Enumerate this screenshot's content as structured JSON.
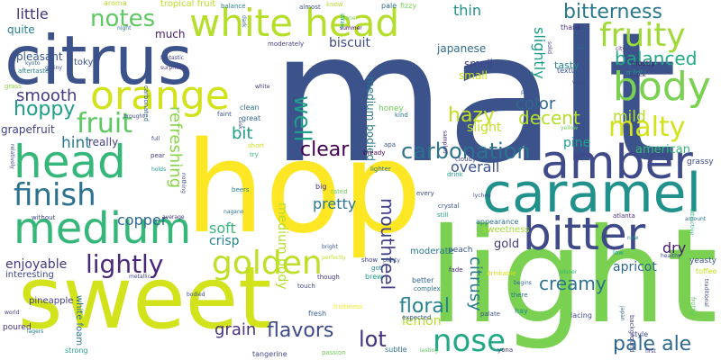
{
  "words": [
    {
      "text": "malt",
      "color": "#3b528b"
    },
    {
      "text": "hop",
      "color": "#fde725"
    },
    {
      "text": "sweet",
      "color": "#d2e21b"
    },
    {
      "text": "light",
      "color": "#7ad151"
    },
    {
      "text": "citrus",
      "color": "#3b528b"
    },
    {
      "text": "white head",
      "color": "#b5de2b"
    },
    {
      "text": "caramel",
      "color": "#21918c"
    },
    {
      "text": "head",
      "color": "#35b779"
    },
    {
      "text": "orange",
      "color": "#d2e21b"
    },
    {
      "text": "amber",
      "color": "#3e4a89"
    },
    {
      "text": "bitter",
      "color": "#3e4a89"
    },
    {
      "text": "medium",
      "color": "#35b779"
    },
    {
      "text": "finish",
      "color": "#2c728e"
    },
    {
      "text": "body",
      "color": "#7ad151"
    },
    {
      "text": "golden",
      "color": "#bddf26"
    },
    {
      "text": "fruity",
      "color": "#a0da39"
    },
    {
      "text": "lightly",
      "color": "#482878"
    },
    {
      "text": "nose",
      "color": "#22a884"
    },
    {
      "text": "bitterness",
      "color": "#2a788e"
    },
    {
      "text": "notes",
      "color": "#5ec962"
    },
    {
      "text": "fruit",
      "color": "#5ec962"
    },
    {
      "text": "malty",
      "color": "#d2e21b"
    },
    {
      "text": "carbonation",
      "color": "#2c728e"
    },
    {
      "text": "balanced",
      "color": "#22a884"
    },
    {
      "text": "pale ale",
      "color": "#31688e"
    },
    {
      "text": "clear",
      "color": "#440154"
    },
    {
      "text": "creamy",
      "color": "#2c728e"
    },
    {
      "text": "well",
      "color": "#1f9e89"
    },
    {
      "text": "hoppy",
      "color": "#1f9e89"
    },
    {
      "text": "color",
      "color": "#31688e"
    },
    {
      "text": "slightly",
      "color": "#1f9e89"
    },
    {
      "text": "hazy",
      "color": "#c2df23"
    },
    {
      "text": "floral",
      "color": "#26828e"
    },
    {
      "text": "lot",
      "color": "#46337e"
    },
    {
      "text": "flavors",
      "color": "#3e4a89"
    },
    {
      "text": "mouthfeel",
      "color": "#424086"
    },
    {
      "text": "refreshing",
      "color": "#86d549"
    },
    {
      "text": "smooth",
      "color": "#443a83"
    },
    {
      "text": "decent",
      "color": "#b5de2b"
    },
    {
      "text": "mild",
      "color": "#b5de2b"
    },
    {
      "text": "overall",
      "color": "#3b528b"
    },
    {
      "text": "bit",
      "color": "#1f9e89"
    },
    {
      "text": "hint",
      "color": "#2a788e"
    },
    {
      "text": "apricot",
      "color": "#306a8e"
    },
    {
      "text": "enjoyable",
      "color": "#443983"
    },
    {
      "text": "grain",
      "color": "#46327e"
    },
    {
      "text": "pretty",
      "color": "#2a788e"
    },
    {
      "text": "citrusy",
      "color": "#2a788e"
    },
    {
      "text": "lemon",
      "color": "#b5de2b"
    },
    {
      "text": "dry",
      "color": "#481b6d"
    },
    {
      "text": "soft",
      "color": "#35b779"
    },
    {
      "text": "crisp",
      "color": "#26828e"
    },
    {
      "text": "copper",
      "color": "#31688e"
    },
    {
      "text": "thin",
      "color": "#21918c"
    },
    {
      "text": "little",
      "color": "#46337e"
    },
    {
      "text": "much",
      "color": "#481b6d"
    },
    {
      "text": "quite",
      "color": "#277f8e"
    },
    {
      "text": "biscuit",
      "color": "#3e4a89"
    },
    {
      "text": "japanese",
      "color": "#2f6c8e"
    },
    {
      "text": "pleasant",
      "color": "#38588c"
    },
    {
      "text": "grapefruit",
      "color": "#424086"
    },
    {
      "text": "gold",
      "color": "#443a83"
    },
    {
      "text": "pine",
      "color": "#1f9e89"
    },
    {
      "text": "american",
      "color": "#37b878"
    },
    {
      "text": "slight",
      "color": "#c2df23"
    },
    {
      "text": "tasty",
      "color": "#25858e"
    },
    {
      "text": "really",
      "color": "#424086"
    },
    {
      "text": "smell",
      "color": "#404688"
    },
    {
      "text": "small",
      "color": "#d0e11c"
    },
    {
      "text": "medium body",
      "color": "#b5de2b"
    },
    {
      "text": "medium bodied",
      "color": "#2a788e"
    },
    {
      "text": "tokyo",
      "color": "#3b528b"
    },
    {
      "text": "honey",
      "color": "#6ece58"
    },
    {
      "text": "sweetness",
      "color": "#a2da37"
    },
    {
      "text": "peach",
      "color": "#39568c"
    },
    {
      "text": "moderate",
      "color": "#2b758e"
    },
    {
      "text": "interesting",
      "color": "#3e4989"
    },
    {
      "text": "pineapple",
      "color": "#433e85"
    },
    {
      "text": "white foam",
      "color": "#2d708e"
    },
    {
      "text": "poured",
      "color": "#463480"
    },
    {
      "text": "grassy",
      "color": "#3d4d8a"
    },
    {
      "text": "fresh",
      "color": "#355f8d"
    },
    {
      "text": "yeasty",
      "color": "#3b528b"
    },
    {
      "text": "toffee",
      "color": "#c8e020"
    },
    {
      "text": "appearance",
      "color": "#2d708e"
    },
    {
      "text": "strong",
      "color": "#1f9e89"
    },
    {
      "text": "tangerine",
      "color": "#404688"
    },
    {
      "text": "passion",
      "color": "#6ece58"
    },
    {
      "text": "fruitiness",
      "color": "#fde725"
    },
    {
      "text": "aroma",
      "color": "#b8de29"
    },
    {
      "text": "tropical fruit",
      "color": "#bade28"
    },
    {
      "text": "almost",
      "color": "#3b528b"
    },
    {
      "text": "balance",
      "color": "#277f8e"
    },
    {
      "text": "know",
      "color": "#b5de2b"
    },
    {
      "text": "pale",
      "color": "#306a8e"
    },
    {
      "text": "fizzy",
      "color": "#7ad151"
    },
    {
      "text": "stone",
      "color": "#6ece58"
    },
    {
      "text": "summer",
      "color": "#440154"
    },
    {
      "text": "thank",
      "color": "#472d7b"
    },
    {
      "text": "mostly",
      "color": "#481a6c"
    },
    {
      "text": "texture",
      "color": "#3b528b"
    },
    {
      "text": "mildly",
      "color": "#1f9e89"
    },
    {
      "text": "back",
      "color": "#46337e"
    },
    {
      "text": "way",
      "color": "#404688"
    },
    {
      "text": "city",
      "color": "#46327e"
    },
    {
      "text": "fantastic",
      "color": "#414487"
    },
    {
      "text": "surprising",
      "color": "#453581"
    },
    {
      "text": "carbonated",
      "color": "#35608d"
    },
    {
      "text": "moderately",
      "color": "#433e85"
    },
    {
      "text": "brought",
      "color": "#3e4989"
    },
    {
      "text": "clean",
      "color": "#2c728e"
    },
    {
      "text": "great",
      "color": "#31688e"
    },
    {
      "text": "faint",
      "color": "#3b528b"
    },
    {
      "text": "short",
      "color": "#d2e21b"
    },
    {
      "text": "try",
      "color": "#35b779"
    },
    {
      "text": "pear",
      "color": "#443983"
    },
    {
      "text": "white",
      "color": "#46337e"
    },
    {
      "text": "full",
      "color": "#3e4989"
    },
    {
      "text": "kind",
      "color": "#2a788e"
    },
    {
      "text": "apa",
      "color": "#39568c"
    },
    {
      "text": "bready",
      "color": "#440154"
    },
    {
      "text": "drink",
      "color": "#1fa187"
    },
    {
      "text": "lighter",
      "color": "#2d708e"
    },
    {
      "text": "beers",
      "color": "#26828e"
    },
    {
      "text": "rated",
      "color": "#6ece58"
    },
    {
      "text": "big",
      "color": "#482878"
    },
    {
      "text": "every",
      "color": "#3d4e8a"
    },
    {
      "text": "cloudy",
      "color": "#3f4788"
    },
    {
      "text": "still",
      "color": "#22a884"
    },
    {
      "text": "crystal",
      "color": "#3b528b"
    },
    {
      "text": "atlanta",
      "color": "#46307e"
    },
    {
      "text": "new",
      "color": "#21918c"
    },
    {
      "text": "amount",
      "color": "#2c728e"
    },
    {
      "text": "low",
      "color": "#1f9e89"
    },
    {
      "text": "healthy",
      "color": "#3b528b"
    },
    {
      "text": "drinkable",
      "color": "#d8e219"
    },
    {
      "text": "pilsner",
      "color": "#35b779"
    },
    {
      "text": "fade",
      "color": "#482878"
    },
    {
      "text": "show",
      "color": "#424086"
    },
    {
      "text": "perfectly",
      "color": "#c2df23"
    },
    {
      "text": "bright",
      "color": "#39568c"
    },
    {
      "text": "though",
      "color": "#443983"
    },
    {
      "text": "touch",
      "color": "#3e4989"
    },
    {
      "text": "brew",
      "color": "#1f9e89"
    },
    {
      "text": "got",
      "color": "#25848e"
    },
    {
      "text": "better",
      "color": "#31688e"
    },
    {
      "text": "complex",
      "color": "#2d708e"
    },
    {
      "text": "palate",
      "color": "#3b528b"
    },
    {
      "text": "expected",
      "color": "#39568c"
    },
    {
      "text": "hay",
      "color": "#25858e"
    },
    {
      "text": "lacing",
      "color": "#3e4a89"
    },
    {
      "text": "style",
      "color": "#3e4989"
    },
    {
      "text": "lasting",
      "color": "#5ec962"
    },
    {
      "text": "yona",
      "color": "#443983"
    },
    {
      "text": "first",
      "color": "#433e85"
    },
    {
      "text": "bodied",
      "color": "#3b528b"
    },
    {
      "text": "average",
      "color": "#472d7b"
    },
    {
      "text": "without",
      "color": "#3e4989"
    },
    {
      "text": "world",
      "color": "#443983"
    },
    {
      "text": "lagers",
      "color": "#2a788e"
    },
    {
      "text": "kyoto",
      "color": "#355f8d"
    },
    {
      "text": "grainy",
      "color": "#3b528b"
    },
    {
      "text": "aftertaste",
      "color": "#26828e"
    },
    {
      "text": "grass",
      "color": "#8fd744"
    },
    {
      "text": "night",
      "color": "#2c728e"
    },
    {
      "text": "plenty",
      "color": "#355e8d"
    },
    {
      "text": "metallic",
      "color": "#3e4a89"
    },
    {
      "text": "subtle",
      "color": "#2c728e"
    },
    {
      "text": "sampled",
      "color": "#482878"
    },
    {
      "text": "dark",
      "color": "#31688e"
    },
    {
      "text": "cask",
      "color": "#3e4a89"
    },
    {
      "text": "nothing",
      "color": "#3d4d8a"
    },
    {
      "text": "holds",
      "color": "#1f9e89"
    },
    {
      "text": "nagano",
      "color": "#2c728e"
    },
    {
      "text": "lychee",
      "color": "#3b528b"
    },
    {
      "text": "yellow",
      "color": "#6ece58"
    },
    {
      "text": "attractive",
      "color": "#35b779"
    },
    {
      "text": "traditional",
      "color": "#3e4a89"
    },
    {
      "text": "frothy",
      "color": "#5ec962"
    },
    {
      "text": "background",
      "color": "#404688"
    },
    {
      "text": "there",
      "color": "#2d708e"
    },
    {
      "text": "begins",
      "color": "#31688e"
    },
    {
      "text": "straw",
      "color": "#1fa187"
    },
    {
      "text": "solid",
      "color": "#46337e"
    },
    {
      "text": "plus",
      "color": "#3b528b"
    },
    {
      "text": "eat",
      "color": "#2c728e"
    },
    {
      "text": "japan",
      "color": "#31688e"
    },
    {
      "text": "relatively",
      "color": "#3e4989"
    }
  ]
}
